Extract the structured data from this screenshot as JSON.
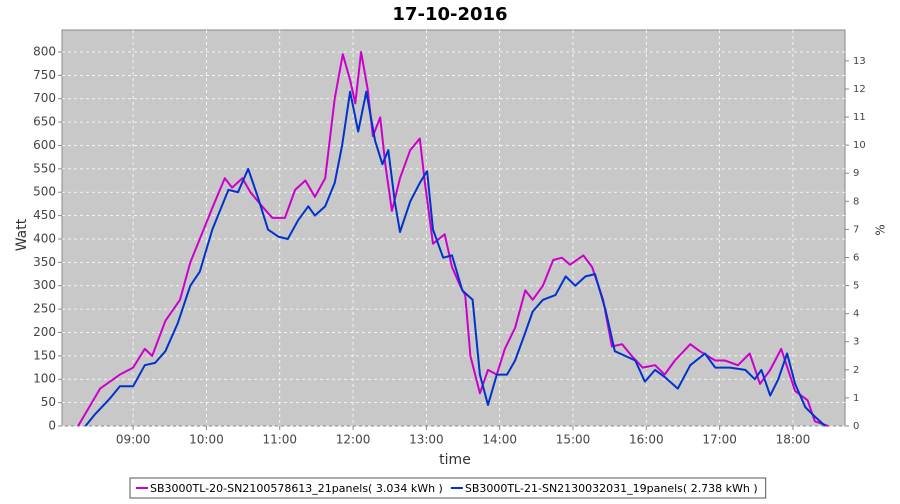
{
  "chart_data": {
    "type": "line",
    "title": "17-10-2016",
    "xlabel": "time",
    "ylabel": "Watt",
    "y2label": "%",
    "xlim": [
      8.03,
      18.71
    ],
    "xticks": [
      {
        "value": 9,
        "label": "09:00"
      },
      {
        "value": 10,
        "label": "10:00"
      },
      {
        "value": 11,
        "label": "11:00"
      },
      {
        "value": 12,
        "label": "12:00"
      },
      {
        "value": 13,
        "label": "13:00"
      },
      {
        "value": 14,
        "label": "14:00"
      },
      {
        "value": 15,
        "label": "15:00"
      },
      {
        "value": 16,
        "label": "16:00"
      },
      {
        "value": 17,
        "label": "17:00"
      },
      {
        "value": 18,
        "label": "18:00"
      }
    ],
    "ylim": [
      0,
      847
    ],
    "yticks": [
      0,
      50,
      100,
      150,
      200,
      250,
      300,
      350,
      400,
      450,
      500,
      550,
      600,
      650,
      700,
      750,
      800
    ],
    "y2lim": [
      0,
      14.1
    ],
    "y2ticks": [
      0,
      1,
      2,
      3,
      4,
      5,
      6,
      7,
      8,
      9,
      10,
      11,
      12,
      13
    ],
    "grid": true,
    "legend": "bottom",
    "series": [
      {
        "name": "SB3000TL-20-SN2100578613_21panels( 3.034 kWh )",
        "color": "#cc00cc",
        "x": [
          8.25,
          8.55,
          8.82,
          9.0,
          9.16,
          9.26,
          9.44,
          9.64,
          9.78,
          9.91,
          10.09,
          10.25,
          10.35,
          10.49,
          10.6,
          10.76,
          10.9,
          11.07,
          11.21,
          11.35,
          11.48,
          11.62,
          11.75,
          11.86,
          11.96,
          12.03,
          12.11,
          12.2,
          12.27,
          12.37,
          12.44,
          12.53,
          12.64,
          12.78,
          12.91,
          12.98,
          13.09,
          13.25,
          13.35,
          13.46,
          13.53,
          13.6,
          13.73,
          13.84,
          13.96,
          14.07,
          14.21,
          14.35,
          14.45,
          14.59,
          14.73,
          14.85,
          14.96,
          15.14,
          15.26,
          15.41,
          15.53,
          15.67,
          15.8,
          15.95,
          16.12,
          16.25,
          16.39,
          16.6,
          16.73,
          16.94,
          17.07,
          17.25,
          17.41,
          17.55,
          17.69,
          17.84,
          18.03,
          18.2,
          18.3,
          18.48
        ],
        "values": [
          0,
          80,
          110,
          125,
          165,
          150,
          225,
          270,
          350,
          400,
          470,
          530,
          510,
          530,
          500,
          470,
          445,
          445,
          505,
          525,
          490,
          530,
          700,
          795,
          740,
          690,
          800,
          720,
          620,
          660,
          560,
          460,
          530,
          590,
          615,
          520,
          390,
          410,
          340,
          300,
          280,
          150,
          70,
          120,
          110,
          165,
          210,
          290,
          270,
          300,
          355,
          360,
          345,
          365,
          340,
          270,
          170,
          175,
          150,
          125,
          130,
          110,
          140,
          175,
          160,
          140,
          140,
          130,
          155,
          90,
          120,
          165,
          75,
          55,
          10,
          0
        ]
      },
      {
        "name": "SB3000TL-21-SN2130032031_19panels( 2.738 kWh )",
        "color": "#0033cc",
        "x": [
          8.35,
          8.48,
          8.69,
          8.82,
          9.0,
          9.16,
          9.3,
          9.44,
          9.61,
          9.78,
          9.91,
          10.08,
          10.3,
          10.43,
          10.57,
          10.7,
          10.84,
          10.98,
          11.11,
          11.25,
          11.39,
          11.48,
          11.62,
          11.75,
          11.85,
          11.96,
          12.07,
          12.18,
          12.3,
          12.4,
          12.48,
          12.57,
          12.64,
          12.78,
          12.91,
          13.01,
          13.09,
          13.23,
          13.35,
          13.49,
          13.63,
          13.73,
          13.84,
          13.96,
          14.1,
          14.21,
          14.35,
          14.45,
          14.59,
          14.76,
          14.9,
          15.03,
          15.17,
          15.3,
          15.44,
          15.57,
          15.71,
          15.85,
          15.98,
          16.12,
          16.25,
          16.43,
          16.6,
          16.8,
          16.94,
          17.14,
          17.35,
          17.48,
          17.57,
          17.69,
          17.8,
          17.92,
          18.03,
          18.17,
          18.3,
          18.44
        ],
        "values": [
          0,
          25,
          60,
          85,
          85,
          130,
          135,
          160,
          220,
          300,
          330,
          420,
          505,
          500,
          550,
          490,
          420,
          405,
          400,
          440,
          470,
          450,
          470,
          520,
          600,
          715,
          630,
          715,
          610,
          560,
          590,
          480,
          415,
          480,
          520,
          545,
          420,
          360,
          365,
          290,
          270,
          110,
          45,
          110,
          110,
          140,
          200,
          245,
          270,
          280,
          320,
          300,
          320,
          325,
          250,
          160,
          150,
          140,
          95,
          120,
          105,
          80,
          130,
          155,
          125,
          125,
          120,
          100,
          120,
          65,
          100,
          155,
          90,
          40,
          20,
          0
        ]
      }
    ]
  }
}
